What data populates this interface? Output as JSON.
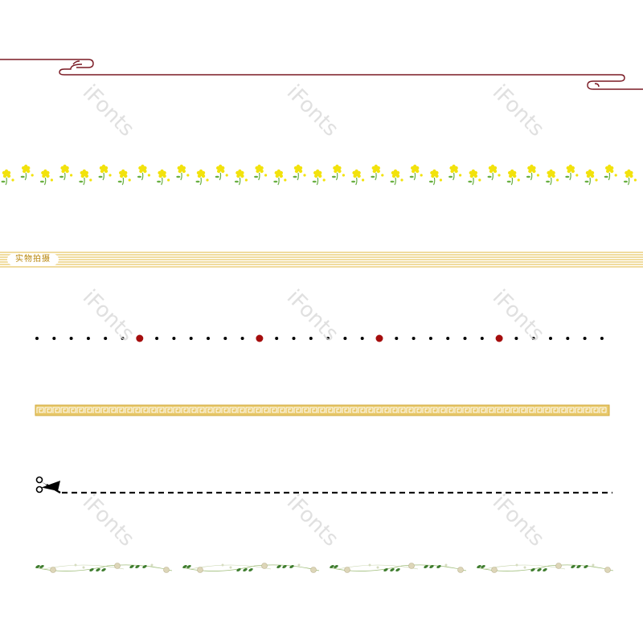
{
  "photo_tag": {
    "label": "实物拍摄"
  },
  "watermark": {
    "text": "iFonts"
  },
  "colors": {
    "cloud_line": "#7a1a24",
    "flower_yellow": "#f2e20c",
    "flower_green": "#6ab043",
    "stripe_gold": "#e7c766",
    "fret_gold": "#d7b24a",
    "dot_black": "#000000",
    "dot_red": "#a50d0d",
    "dash_black": "#111111",
    "vine_green": "#3f7d2f",
    "vine_bead": "#ddd6b8"
  },
  "icons": [
    "cloud-border-icon",
    "rapeseed-flower-border-icon",
    "fret-pattern-icon",
    "scissors-icon",
    "vine-border-icon"
  ]
}
